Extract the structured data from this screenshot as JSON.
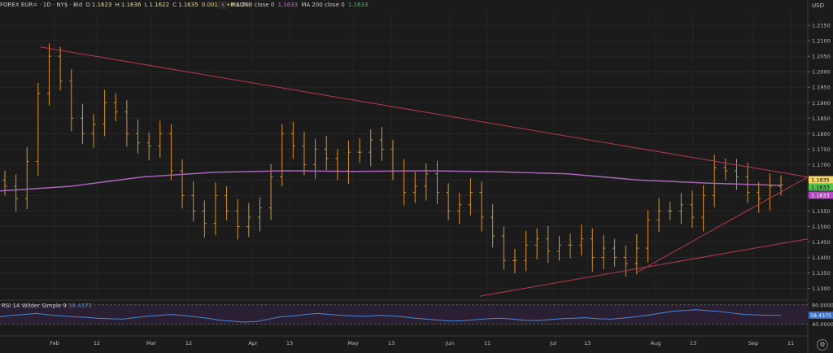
{
  "header": {
    "symbol": "FOREX EUR= · 1D · NY$ · Bid",
    "open_label": "O",
    "open": "1.1623",
    "high_label": "H",
    "high": "1.1636",
    "low_label": "L",
    "low": "1.1622",
    "close_label": "C",
    "close": "1.1635",
    "change": "0.0012 (+0.10%)",
    "collapse_icon": "chevron-left-icon",
    "ma_items": [
      {
        "label": "MA 200 close 0",
        "value": "1.1633",
        "color": "#c86fd0"
      },
      {
        "label": "MA 200 close 0",
        "value": "1.1633",
        "color": "#4fc24f"
      }
    ]
  },
  "colors": {
    "background": "#1b1b1b",
    "bars": "#d9932b",
    "ma": "#a865b5",
    "trend": "#b73a4a",
    "rsi_line": "#4a86d8",
    "rsi_band": "#2a1f33",
    "value_highlight": "#f5d76e",
    "value_green": "#4fc24f"
  },
  "price_axis": {
    "currency": "USD",
    "ticks": [
      "1.2150",
      "1.2100",
      "1.2050",
      "1.2000",
      "1.1950",
      "1.1900",
      "1.1850",
      "1.1800",
      "1.1750",
      "1.1700",
      "1.1650",
      "1.1600",
      "1.1550",
      "1.1500",
      "1.1450",
      "1.1400",
      "1.1350",
      "1.1300"
    ],
    "last_price_tag": "1.1635",
    "ma_tag_green": "1.1633",
    "ma_tag_purple": "1.1633"
  },
  "time_axis": {
    "labels": [
      "Feb",
      "12",
      "Mar",
      "12",
      "Apr",
      "13",
      "May",
      "13",
      "Jun",
      "11",
      "Jul",
      "13",
      "Aug",
      "13",
      "Sep",
      "11"
    ]
  },
  "rsi": {
    "label": "RSI 14 Wilder Simple 9",
    "value": "58.4375",
    "ticks": [
      "80.0000",
      "40.0000"
    ]
  },
  "settings_icon": "gear-icon",
  "chart_data": {
    "type": "line",
    "title": "FOREX EUR= · 1D · NY$ · Bid",
    "ylabel": "USD",
    "ylim": [
      1.127,
      1.2195
    ],
    "grid": true,
    "series": [
      {
        "name": "MA 200 close 0",
        "values": [
          1.1615,
          1.163,
          1.166,
          1.1675,
          1.168,
          1.1678,
          1.168,
          1.1677,
          1.167,
          1.165,
          1.164,
          1.1633
        ]
      }
    ],
    "ohlc_close": [
      1.163,
      1.159,
      1.171,
      1.193,
      1.205,
      1.197,
      1.185,
      1.18,
      1.183,
      1.19,
      1.187,
      1.18,
      1.177,
      1.176,
      1.18,
      1.168,
      1.16,
      1.155,
      1.151,
      1.16,
      1.155,
      1.15,
      1.153,
      1.156,
      1.166,
      1.18,
      1.176,
      1.17,
      1.175,
      1.172,
      1.168,
      1.174,
      1.174,
      1.178,
      1.175,
      1.168,
      1.161,
      1.163,
      1.167,
      1.161,
      1.155,
      1.157,
      1.161,
      1.153,
      1.147,
      1.139,
      1.139,
      1.144,
      1.146,
      1.142,
      1.144,
      1.144,
      1.146,
      1.14,
      1.143,
      1.14,
      1.138,
      1.143,
      1.152,
      1.155,
      1.155,
      1.157,
      1.153,
      1.16,
      1.169,
      1.168,
      1.166,
      1.161,
      1.159,
      1.163,
      1.1635
    ],
    "trendlines": [
      {
        "from": [
          "Feb",
          1.208
        ],
        "to": [
          "Sep+",
          1.166
        ]
      },
      {
        "from": [
          "Jul+",
          1.1355
        ],
        "to": [
          "Sep+",
          1.166
        ]
      },
      {
        "from": [
          "Jun+",
          1.1275
        ],
        "to": [
          "Sep+",
          1.146
        ]
      }
    ],
    "rsi_series": [
      55,
      58,
      60,
      62,
      59,
      57,
      55,
      54,
      52,
      51,
      50,
      53,
      56,
      58,
      60,
      58,
      55,
      52,
      48,
      46,
      44,
      45,
      50,
      55,
      57,
      60,
      62,
      60,
      58,
      57,
      56,
      58,
      57,
      55,
      52,
      50,
      48,
      46,
      47,
      49,
      51,
      52,
      50,
      48,
      47,
      49,
      51,
      52,
      53,
      51,
      50,
      52,
      55,
      58,
      62,
      66,
      68,
      70,
      68,
      66,
      63,
      60,
      59,
      58,
      58.4
    ]
  }
}
